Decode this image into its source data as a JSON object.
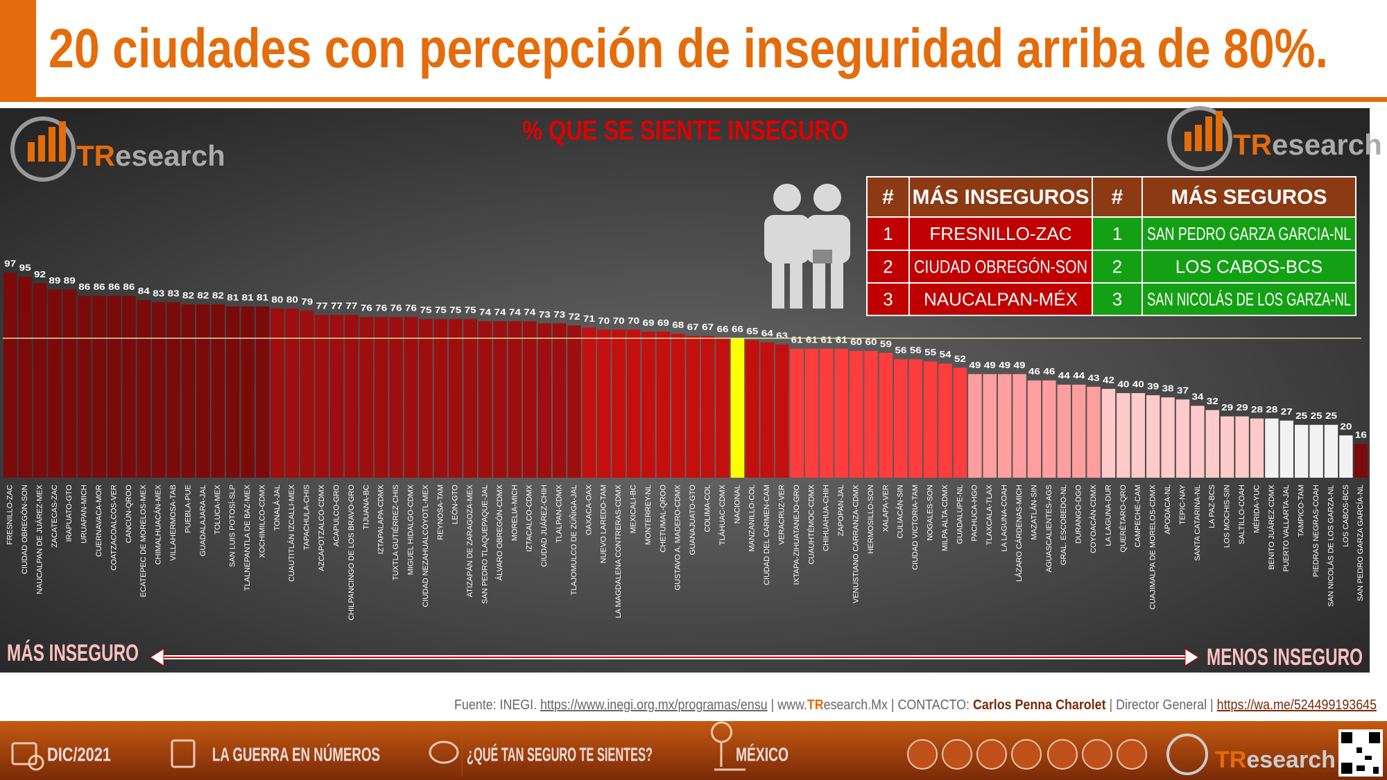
{
  "header": {
    "title": "20 ciudades con percepción de inseguridad arriba de 80%."
  },
  "chart_data": {
    "type": "bar",
    "title": "% QUE SE SIENTE INSEGURO",
    "categories": [
      "FRESNILLO-ZAC",
      "CIUDAD OBREGÓN-SON",
      "NAUCALPAN DE JUÁREZ-MEX",
      "ZACATECAS-ZAC",
      "IRAPUATO-GTO",
      "URUAPAN-MICH",
      "CUERNAVACA-MOR",
      "COATZACOALCOS-VER",
      "CANCÚN-QROO",
      "ECATEPEC DE MORELOS-MEX",
      "CHIMALHUACÁN-MEX",
      "VILLAHERMOSA-TAB",
      "PUEBLA-PUE",
      "GUADALAJARA-JAL",
      "TOLUCA-MEX",
      "SAN LUIS POTOSÍ-SLP",
      "TLALNEPANTLA DE BAZ-MEX",
      "XOCHIMILCO-CDMX",
      "TONALÁ-JAL",
      "CUAUTITLÁN IZCALLI-MEX",
      "TAPACHULA-CHIS",
      "AZCAPOTZALCO-CDMX",
      "ACAPULCO-GRO",
      "CHILPANCINGO DE LOS BRAVO-GRO",
      "TIJUANA-BC",
      "IZTAPALAPA-CDMX",
      "TUXTLA GUTIÉRREZ-CHIS",
      "MIGUEL HIDALGO-CDMX",
      "CIUDAD NEZAHUALCÓYOTL-MEX",
      "REYNOSA-TAM",
      "LEÓN-GTO",
      "ATIZAPÁN DE ZARAGOZA-MEX",
      "SAN PEDRO TLAQUEPAQUE-JAL",
      "ÁLVARO OBREGÓN-CDMX",
      "MORELIA-MICH",
      "IZTACALCO-CDMX",
      "CIUDAD JUÁREZ-CHIH",
      "TLALPAN-CDMX",
      "TLAJOMULCO DE ZÚÑIGA-JAL",
      "OAXACA-OAX",
      "NUEVO LAREDO-TAM",
      "LA MAGDALENA CONTRERAS-CDMX",
      "MEXICALI-BC",
      "MONTERREY-NL",
      "CHETUMAL-QROO",
      "GUSTAVO A. MADERO-CDMX",
      "GUANAJUATO-GTO",
      "COLIMA-COL",
      "TLÁHUAC-CDMX",
      "NACIONAL",
      "MANZANILLO-COL",
      "CIUDAD DEL CARMEN-CAM",
      "VERACRUZ-VER",
      "IXTAPA-ZIHUATANEJO-GRO",
      "CUAUHTÉMOC-CDMX",
      "CHIHUAHUA-CHIH",
      "ZAPOPAN-JAL",
      "VENUSTIANO CARRANZA-CDMX",
      "HERMOSILLO-SON",
      "XALAPA-VER",
      "CULIACÁN-SIN",
      "CIUDAD VICTORIA-TAM",
      "NOGALES-SON",
      "MILPA ALTA-CDMX",
      "GUADALUPE-NL",
      "PACHUCA-HGO",
      "TLAXCALA-TLAX",
      "LA LAGUNA-COAH",
      "LÁZARO CÁRDENAS-MICH",
      "MAZATLÁN-SIN",
      "AGUASCALIENTES-AGS",
      "GRAL. ESCOBEDO-NL",
      "DURANGO-DGO",
      "COYOACÁN-CDMX",
      "LA LAGUNA-DUR",
      "QUERÉTARO-QRO",
      "CAMPECHE-CAM",
      "CUAJIMALPA DE MORELOS-CDMX",
      "APODACA-NL",
      "TEPIC-NAY",
      "SANTA CATARINA-NL",
      "LA PAZ-BCS",
      "LOS MOCHIS-SIN",
      "SALTILLO-COAH",
      "MÉRIDA-YUC",
      "BENITO JUÁREZ-CDMX",
      "PUERTO VALLARTA-JAL",
      "TAMPICO-TAM",
      "PIEDRAS NEGRAS-COAH",
      "SAN NICOLÁS DE LOS GARZA-NL",
      "LOS CABOS-BCS",
      "SAN PEDRO GARZA GARCÍA-NL"
    ],
    "values": [
      97,
      95,
      92,
      89,
      89,
      86,
      86,
      86,
      86,
      84,
      83,
      83,
      82,
      82,
      82,
      81,
      81,
      81,
      80,
      80,
      79,
      77,
      77,
      77,
      76,
      76,
      76,
      76,
      75,
      75,
      75,
      75,
      74,
      74,
      74,
      74,
      73,
      73,
      72,
      71,
      70,
      70,
      70,
      69,
      69,
      68,
      67,
      67,
      66,
      66,
      65,
      64,
      63,
      61,
      61,
      61,
      61,
      60,
      60,
      59,
      56,
      56,
      55,
      54,
      52,
      49,
      49,
      49,
      49,
      46,
      46,
      44,
      44,
      43,
      42,
      40,
      40,
      39,
      38,
      37,
      34,
      32,
      29,
      29,
      28,
      28,
      27,
      25,
      25,
      25,
      20,
      16
    ],
    "colors": [
      "#7b0b0b",
      "#7b0b0b",
      "#7b0b0b",
      "#7b0b0b",
      "#7b0b0b",
      "#7b0b0b",
      "#7b0b0b",
      "#7b0b0b",
      "#7b0b0b",
      "#7b0b0b",
      "#7b0b0b",
      "#7b0b0b",
      "#7b0b0b",
      "#7b0b0b",
      "#7b0b0b",
      "#7b0b0b",
      "#7b0b0b",
      "#7b0b0b",
      "#9e0e0e",
      "#9e0e0e",
      "#9e0e0e",
      "#9e0e0e",
      "#9e0e0e",
      "#9e0e0e",
      "#9e0e0e",
      "#9e0e0e",
      "#9e0e0e",
      "#9e0e0e",
      "#9e0e0e",
      "#9e0e0e",
      "#9e0e0e",
      "#9e0e0e",
      "#9e0e0e",
      "#9e0e0e",
      "#9e0e0e",
      "#9e0e0e",
      "#9e0e0e",
      "#9e0e0e",
      "#9e0e0e",
      "#c40f0f",
      "#c40f0f",
      "#c40f0f",
      "#c40f0f",
      "#c40f0f",
      "#c40f0f",
      "#c40f0f",
      "#c40f0f",
      "#c40f0f",
      "#c40f0f",
      "#ffff00",
      "#c40f0f",
      "#c40f0f",
      "#c40f0f",
      "#ff3d3d",
      "#ff3d3d",
      "#ff3d3d",
      "#ff3d3d",
      "#ff3d3d",
      "#ff3d3d",
      "#ff3d3d",
      "#ff3d3d",
      "#ff3d3d",
      "#ff3d3d",
      "#ff3d3d",
      "#ff3d3d",
      "#ff9e9e",
      "#ff9e9e",
      "#ff9e9e",
      "#ff9e9e",
      "#ff9e9e",
      "#ff9e9e",
      "#ff9e9e",
      "#ff9e9e",
      "#ff9e9e",
      "#ffcaca",
      "#ffcaca",
      "#ffcaca",
      "#ffcaca",
      "#ffcaca",
      "#ffcaca",
      "#ffcaca",
      "#ffcaca",
      "#ffcaca",
      "#ffcaca",
      "#ffcaca",
      "#f2f2f2",
      "#f2f2f2",
      "#f2f2f2",
      "#f2f2f2",
      "#f2f2f2",
      "#f2f2f2",
      "#7b0b0b"
    ],
    "ylim": [
      0,
      100
    ]
  },
  "table": {
    "headers": [
      "#",
      "MÁS INSEGUROS",
      "#",
      "MÁS SEGUROS"
    ],
    "rows": [
      [
        1,
        "FRESNILLO-ZAC",
        1,
        "SAN PEDRO GARZA GARCIA-NL"
      ],
      [
        2,
        "CIUDAD OBREGÓN-SON",
        2,
        "LOS CABOS-BCS"
      ],
      [
        3,
        "NAUCALPAN-MÉX",
        3,
        "SAN NICOLÁS DE LOS GARZA-NL"
      ]
    ]
  },
  "annotations": {
    "left": "MÁS INSEGURO",
    "right": "MENOS INSEGURO"
  },
  "logo": [
    "TR",
    "esearch"
  ],
  "footer": [
    "Fuente: INEGI. ",
    "https://www.inegi.org.mx/programas/ensu",
    " | www.",
    "TR",
    "esearch.Mx | CONTACTO: ",
    "Carlos Penna Charolet",
    " | Director General | ",
    "https://wa.me/524499193645"
  ],
  "bottom_bar": [
    "DIC/2021",
    "LA GUERRA EN NÚMEROS",
    "¿QUÉ TAN SEGURO TE SIENTES?",
    "MÉXICO"
  ]
}
